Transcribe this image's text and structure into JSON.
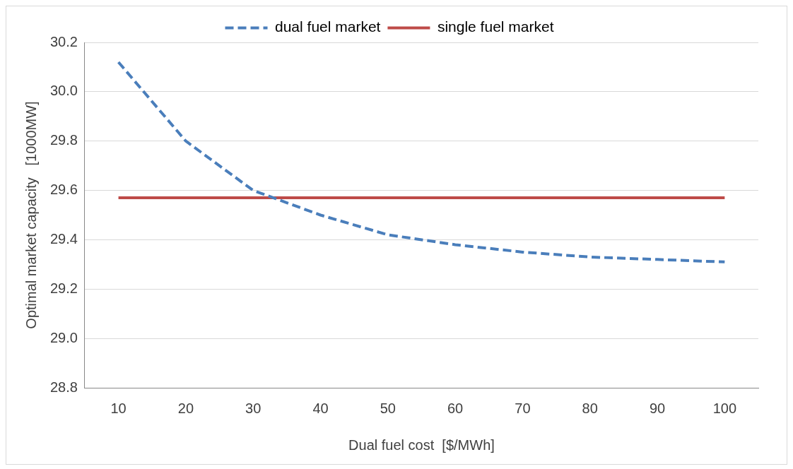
{
  "chart_data": {
    "type": "line",
    "xlabel": "Dual fuel cost  [$/MWh]",
    "ylabel": "Optimal market capacity   [1000MW]",
    "categories": [
      "10",
      "20",
      "30",
      "40",
      "50",
      "60",
      "70",
      "80",
      "90",
      "100"
    ],
    "series": [
      {
        "name": "dual fuel market",
        "color": "#4a7ebb",
        "line_style": "dashed",
        "values": [
          30.12,
          29.8,
          29.6,
          29.5,
          29.42,
          29.38,
          29.35,
          29.33,
          29.32,
          29.31
        ]
      },
      {
        "name": "single fuel market",
        "color": "#be4b48",
        "line_style": "solid",
        "values": [
          29.57,
          29.57,
          29.57,
          29.57,
          29.57,
          29.57,
          29.57,
          29.57,
          29.57,
          29.57
        ]
      }
    ],
    "ylim": [
      28.8,
      30.2
    ],
    "yticks": [
      {
        "value": 28.8,
        "label": "28.8"
      },
      {
        "value": 29.0,
        "label": "29.0"
      },
      {
        "value": 29.2,
        "label": "29.2"
      },
      {
        "value": 29.4,
        "label": "29.4"
      },
      {
        "value": 29.6,
        "label": "29.6"
      },
      {
        "value": 29.8,
        "label": "29.8"
      },
      {
        "value": 30.0,
        "label": "30.0"
      },
      {
        "value": 30.2,
        "label": "30.2"
      }
    ],
    "grid": "y",
    "legend": "top",
    "marker": "none"
  }
}
